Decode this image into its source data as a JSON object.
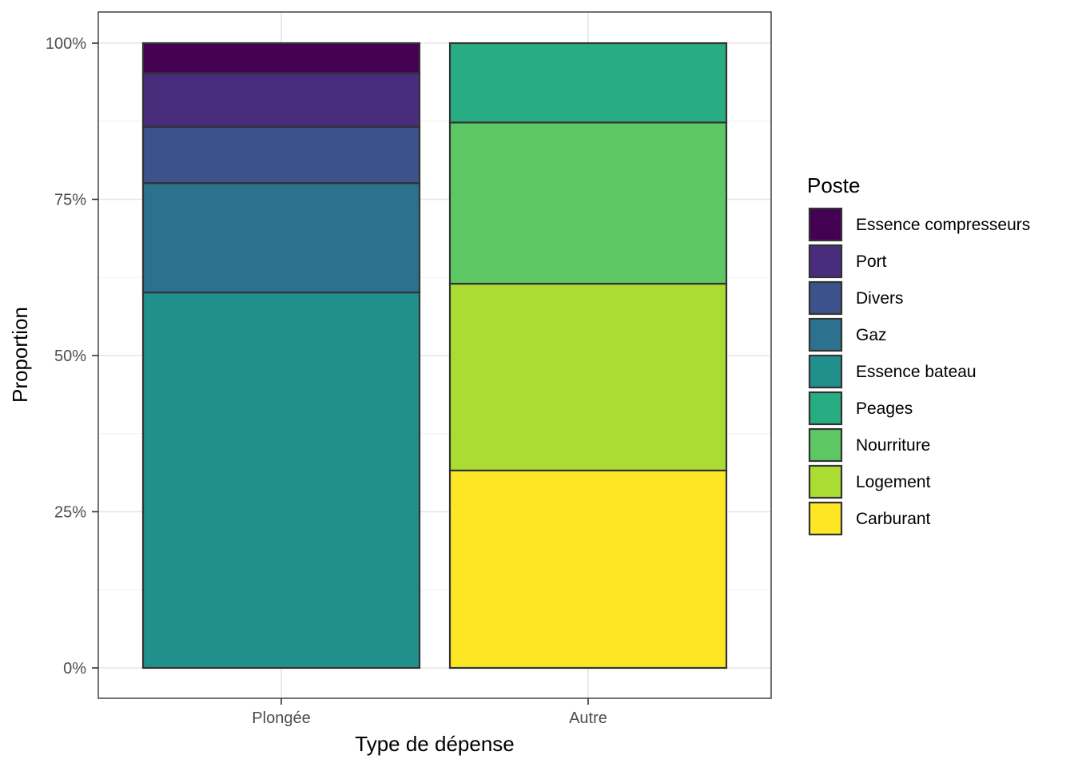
{
  "chart_data": {
    "type": "bar",
    "stacked": true,
    "position": "fill",
    "categories": [
      "Plongée",
      "Autre"
    ],
    "xlabel": "Type de dépense",
    "ylabel": "Proportion",
    "ylim": [
      0,
      1
    ],
    "yticks": [
      {
        "value": 0,
        "label": "0%"
      },
      {
        "value": 0.25,
        "label": "25%"
      },
      {
        "value": 0.5,
        "label": "50%"
      },
      {
        "value": 0.75,
        "label": "75%"
      },
      {
        "value": 1,
        "label": "100%"
      }
    ],
    "grid": true,
    "legend": {
      "title": "Poste",
      "placement": "right"
    },
    "series": [
      {
        "name": "Essence compresseurs",
        "color": "#440154",
        "values": [
          0.048,
          0
        ]
      },
      {
        "name": "Port",
        "color": "#472D7B",
        "values": [
          0.086,
          0
        ]
      },
      {
        "name": "Divers",
        "color": "#3B528B",
        "values": [
          0.09,
          0
        ]
      },
      {
        "name": "Gaz",
        "color": "#2C728E",
        "values": [
          0.175,
          0
        ]
      },
      {
        "name": "Essence bateau",
        "color": "#21908C",
        "values": [
          0.601,
          0
        ]
      },
      {
        "name": "Peages",
        "color": "#27AD81",
        "values": [
          0,
          0.127
        ]
      },
      {
        "name": "Nourriture",
        "color": "#5DC863",
        "values": [
          0,
          0.258
        ]
      },
      {
        "name": "Logement",
        "color": "#AADC32",
        "values": [
          0,
          0.299
        ]
      },
      {
        "name": "Carburant",
        "color": "#FDE725",
        "values": [
          0,
          0.316
        ]
      }
    ]
  }
}
